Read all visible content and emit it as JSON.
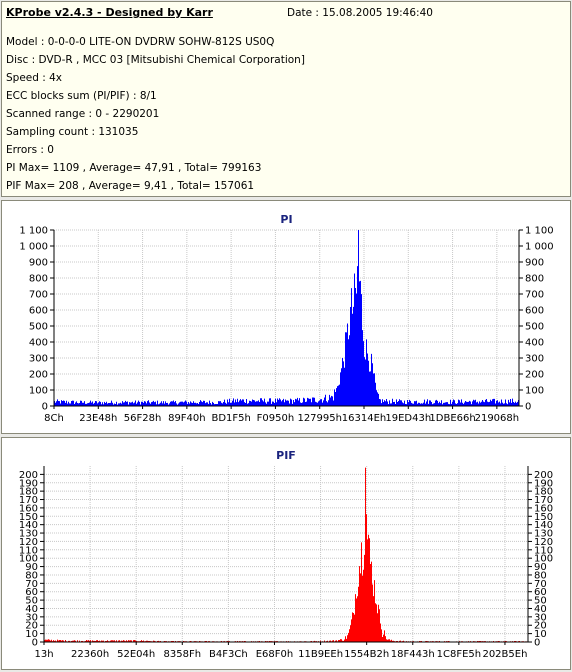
{
  "info": {
    "title": "KProbe v2.4.3 - Designed by Karr",
    "date": "Date : 15.08.2005 19:46:40",
    "lines": [
      "Model : 0-0-0-0 LITE-ON DVDRW SOHW-812S  US0Q",
      "Disc : DVD-R , MCC 03 [Mitsubishi Chemical Corporation]",
      "Speed : 4x",
      "ECC blocks sum (PI/PIF) : 8/1",
      "Scanned range : 0 - 2290201",
      "Sampling count : 131035",
      "Errors : 0",
      "PI Max= 1109 , Average= 47,91 , Total= 799163",
      "PIF Max= 208 , Average= 9,41 , Total= 157061"
    ]
  },
  "chart_data": [
    {
      "type": "area",
      "title": "PI",
      "color": "#0000ff",
      "xlabel": "",
      "ylabel": "",
      "ylim": [
        0,
        1100
      ],
      "yticks": [
        0,
        100,
        200,
        300,
        400,
        500,
        600,
        700,
        800,
        900,
        1000,
        1100
      ],
      "ytick_labels": [
        "0",
        "100",
        "200",
        "300",
        "400",
        "500",
        "600",
        "700",
        "800",
        "900",
        "1 000",
        "1 100"
      ],
      "xtick_labels": [
        "8Ch",
        "23E48h",
        "56F28h",
        "89F40h",
        "BD1F5h",
        "F0950h",
        "127995h",
        "16314Eh",
        "19ED43h",
        "1DBE66h",
        "219068h"
      ],
      "grid": true,
      "x": [
        0,
        0.05,
        0.1,
        0.15,
        0.2,
        0.25,
        0.3,
        0.35,
        0.4,
        0.45,
        0.5,
        0.55,
        0.58,
        0.6,
        0.61,
        0.62,
        0.63,
        0.635,
        0.64,
        0.645,
        0.65,
        0.655,
        0.66,
        0.665,
        0.67,
        0.675,
        0.68,
        0.685,
        0.69,
        0.695,
        0.7,
        0.705,
        0.71,
        0.75,
        0.8,
        0.85,
        0.9,
        0.95,
        1.0
      ],
      "values": [
        35,
        30,
        28,
        30,
        30,
        28,
        32,
        30,
        45,
        42,
        40,
        48,
        60,
        75,
        150,
        320,
        520,
        680,
        760,
        820,
        880,
        1109,
        880,
        640,
        470,
        420,
        380,
        300,
        200,
        90,
        50,
        42,
        40,
        35,
        38,
        35,
        36,
        38,
        40
      ]
    },
    {
      "type": "area",
      "title": "PIF",
      "color": "#ff0000",
      "xlabel": "",
      "ylabel": "",
      "ylim": [
        0,
        210
      ],
      "yticks": [
        0,
        10,
        20,
        30,
        40,
        50,
        60,
        70,
        80,
        90,
        100,
        110,
        120,
        130,
        140,
        150,
        160,
        170,
        180,
        190,
        200
      ],
      "ytick_labels": [
        "0",
        "10",
        "20",
        "30",
        "40",
        "50",
        "60",
        "70",
        "80",
        "90",
        "100",
        "110",
        "120",
        "130",
        "140",
        "150",
        "160",
        "170",
        "180",
        "190",
        "200"
      ],
      "xtick_labels": [
        "13h",
        "22360h",
        "52E04h",
        "8358Fh",
        "B4F3Ch",
        "E68F0h",
        "11B9EEh",
        "1554B2h",
        "18F443h",
        "1C8FE5h",
        "202B5Eh"
      ],
      "grid": true,
      "x": [
        0,
        0.05,
        0.1,
        0.15,
        0.2,
        0.25,
        0.3,
        0.35,
        0.4,
        0.45,
        0.5,
        0.55,
        0.6,
        0.62,
        0.63,
        0.64,
        0.645,
        0.65,
        0.655,
        0.66,
        0.665,
        0.67,
        0.675,
        0.68,
        0.685,
        0.69,
        0.695,
        0.7,
        0.71,
        0.72,
        0.75,
        0.8,
        0.85,
        0.9,
        0.95,
        1.0
      ],
      "values": [
        3,
        2,
        2,
        2,
        2,
        1,
        1,
        1,
        1,
        1,
        1,
        1,
        2,
        4,
        12,
        45,
        80,
        110,
        130,
        150,
        208,
        150,
        120,
        100,
        75,
        55,
        35,
        18,
        4,
        2,
        1,
        1,
        1,
        1,
        1,
        1
      ]
    }
  ]
}
